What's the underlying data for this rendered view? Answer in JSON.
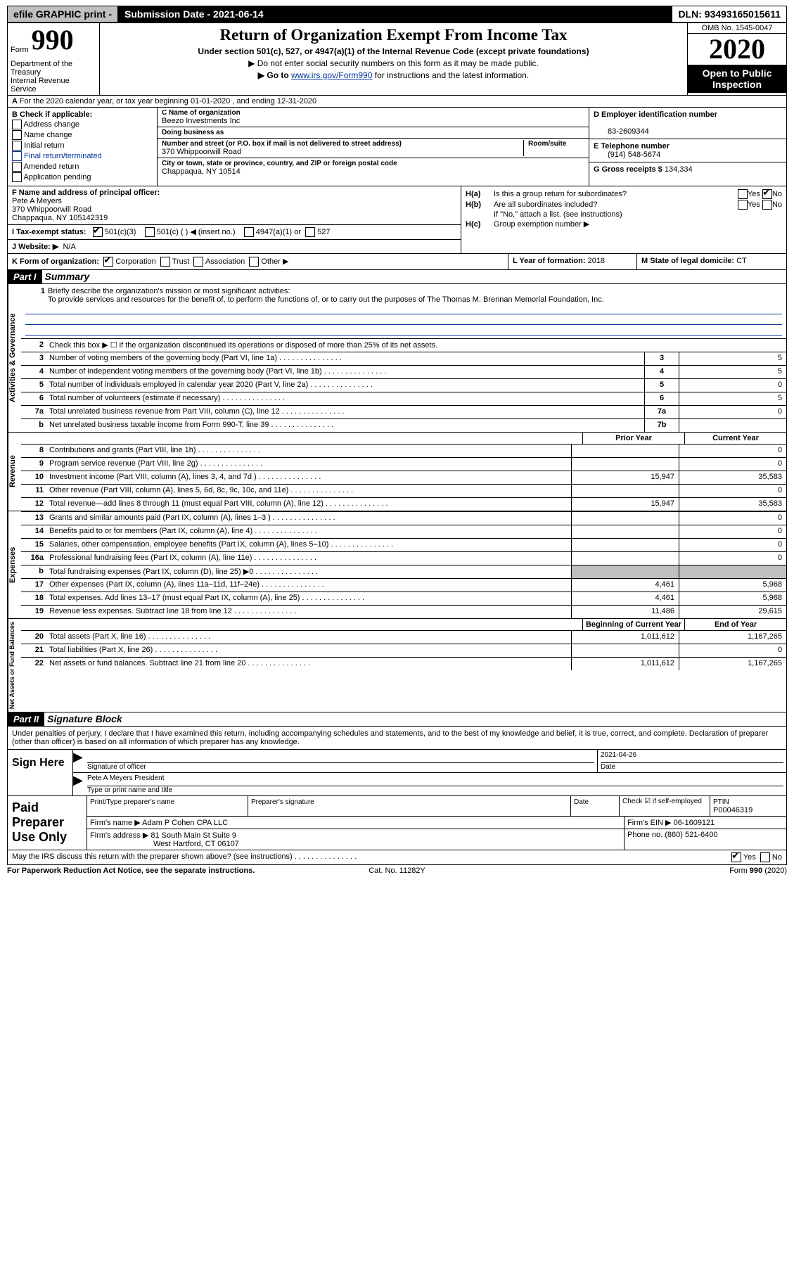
{
  "topbar": {
    "efile": "efile GRAPHIC print - ",
    "submission": "Submission Date - 2021-06-14",
    "dln": "DLN: 93493165015611"
  },
  "header": {
    "form_word": "Form",
    "form_num": "990",
    "title": "Return of Organization Exempt From Income Tax",
    "sub1": "Under section 501(c), 527, or 4947(a)(1) of the Internal Revenue Code (except private foundations)",
    "sub2": "▶ Do not enter social security numbers on this form as it may be made public.",
    "sub3_pre": "▶ Go to ",
    "sub3_link": "www.irs.gov/Form990",
    "sub3_post": " for instructions and the latest information.",
    "dept": "Department of the Treasury\nInternal Revenue Service",
    "omb": "OMB No. 1545-0047",
    "year": "2020",
    "opi": "Open to Public Inspection"
  },
  "line_a": "For the 2020 calendar year, or tax year beginning 01-01-2020 , and ending 12-31-2020",
  "box_b": {
    "label": "B Check if applicable:",
    "items": [
      "Address change",
      "Name change",
      "Initial return",
      "Final return/terminated",
      "Amended return",
      "Application pending"
    ]
  },
  "box_c": {
    "name_lbl": "C Name of organization",
    "name": "Beezo Investments Inc",
    "dba_lbl": "Doing business as",
    "dba": "",
    "addr_lbl": "Number and street (or P.O. box if mail is not delivered to street address)",
    "room_lbl": "Room/suite",
    "addr": "370 Whippoorwill Road",
    "city_lbl": "City or town, state or province, country, and ZIP or foreign postal code",
    "city": "Chappaqua, NY  10514"
  },
  "box_d": {
    "lbl": "D Employer identification number",
    "val": "83-2609344"
  },
  "box_e": {
    "lbl": "E Telephone number",
    "val": "(914) 548-5674"
  },
  "box_g": {
    "lbl": "G Gross receipts $",
    "val": "134,334"
  },
  "box_f": {
    "lbl": "F Name and address of principal officer:",
    "name": "Pete A Meyers",
    "addr": "370 Whippoorwill Road",
    "city": "Chappaqua, NY  105142319"
  },
  "box_h": {
    "a_lbl": "Is this a group return for subordinates?",
    "b_lbl": "Are all subordinates included?",
    "b_note": "If \"No,\" attach a list. (see instructions)",
    "c_lbl": "Group exemption number ▶",
    "yes": "Yes",
    "no": "No"
  },
  "box_i": {
    "lbl": "I   Tax-exempt status:",
    "o1": "501(c)(3)",
    "o2": "501(c) ( ) ◀ (insert no.)",
    "o3": "4947(a)(1) or",
    "o4": "527"
  },
  "box_j": {
    "lbl": "J   Website: ▶",
    "val": "N/A"
  },
  "box_k": {
    "lbl": "K Form of organization:",
    "o1": "Corporation",
    "o2": "Trust",
    "o3": "Association",
    "o4": "Other ▶"
  },
  "box_l": {
    "lbl": "L Year of formation:",
    "val": "2018"
  },
  "box_m": {
    "lbl": "M State of legal domicile:",
    "val": "CT"
  },
  "part1": {
    "num": "Part I",
    "title": "Summary"
  },
  "mission": {
    "q": "Briefly describe the organization's mission or most significant activities:",
    "text": "To provide services and resources for the benefit of, to perform the functions of, or to carry out the purposes of The Thomas M. Brennan Memorial Foundation, Inc."
  },
  "line2": "Check this box ▶ ☐  if the organization discontinued its operations or disposed of more than 25% of its net assets.",
  "govlines": [
    {
      "n": "3",
      "d": "Number of voting members of the governing body (Part VI, line 1a)",
      "cn": "3",
      "v": "5"
    },
    {
      "n": "4",
      "d": "Number of independent voting members of the governing body (Part VI, line 1b)",
      "cn": "4",
      "v": "5"
    },
    {
      "n": "5",
      "d": "Total number of individuals employed in calendar year 2020 (Part V, line 2a)",
      "cn": "5",
      "v": "0"
    },
    {
      "n": "6",
      "d": "Total number of volunteers (estimate if necessary)",
      "cn": "6",
      "v": "5"
    },
    {
      "n": "7a",
      "d": "Total unrelated business revenue from Part VIII, column (C), line 12",
      "cn": "7a",
      "v": "0"
    },
    {
      "n": "b",
      "d": "Net unrelated business taxable income from Form 990-T, line 39",
      "cn": "7b",
      "v": ""
    }
  ],
  "col_hdrs": {
    "prior": "Prior Year",
    "current": "Current Year"
  },
  "revenue": [
    {
      "n": "8",
      "d": "Contributions and grants (Part VIII, line 1h)",
      "p": "",
      "c": "0"
    },
    {
      "n": "9",
      "d": "Program service revenue (Part VIII, line 2g)",
      "p": "",
      "c": "0"
    },
    {
      "n": "10",
      "d": "Investment income (Part VIII, column (A), lines 3, 4, and 7d )",
      "p": "15,947",
      "c": "35,583"
    },
    {
      "n": "11",
      "d": "Other revenue (Part VIII, column (A), lines 5, 6d, 8c, 9c, 10c, and 11e)",
      "p": "",
      "c": "0"
    },
    {
      "n": "12",
      "d": "Total revenue—add lines 8 through 11 (must equal Part VIII, column (A), line 12)",
      "p": "15,947",
      "c": "35,583"
    }
  ],
  "expenses": [
    {
      "n": "13",
      "d": "Grants and similar amounts paid (Part IX, column (A), lines 1–3 )",
      "p": "",
      "c": "0"
    },
    {
      "n": "14",
      "d": "Benefits paid to or for members (Part IX, column (A), line 4)",
      "p": "",
      "c": "0"
    },
    {
      "n": "15",
      "d": "Salaries, other compensation, employee benefits (Part IX, column (A), lines 5–10)",
      "p": "",
      "c": "0"
    },
    {
      "n": "16a",
      "d": "Professional fundraising fees (Part IX, column (A), line 11e)",
      "p": "",
      "c": "0"
    },
    {
      "n": "b",
      "d": "Total fundraising expenses (Part IX, column (D), line 25) ▶0",
      "p": "grey",
      "c": "grey"
    },
    {
      "n": "17",
      "d": "Other expenses (Part IX, column (A), lines 11a–11d, 11f–24e)",
      "p": "4,461",
      "c": "5,968"
    },
    {
      "n": "18",
      "d": "Total expenses. Add lines 13–17 (must equal Part IX, column (A), line 25)",
      "p": "4,461",
      "c": "5,968"
    },
    {
      "n": "19",
      "d": "Revenue less expenses. Subtract line 18 from line 12",
      "p": "11,486",
      "c": "29,615"
    }
  ],
  "na_hdrs": {
    "beg": "Beginning of Current Year",
    "end": "End of Year"
  },
  "netassets": [
    {
      "n": "20",
      "d": "Total assets (Part X, line 16)",
      "p": "1,011,612",
      "c": "1,167,265"
    },
    {
      "n": "21",
      "d": "Total liabilities (Part X, line 26)",
      "p": "",
      "c": "0"
    },
    {
      "n": "22",
      "d": "Net assets or fund balances. Subtract line 21 from line 20",
      "p": "1,011,612",
      "c": "1,167,265"
    }
  ],
  "part2": {
    "num": "Part II",
    "title": "Signature Block"
  },
  "penalties": "Under penalties of perjury, I declare that I have examined this return, including accompanying schedules and statements, and to the best of my knowledge and belief, it is true, correct, and complete. Declaration of preparer (other than officer) is based on all information of which preparer has any knowledge.",
  "sign": {
    "here": "Sign Here",
    "sig_lbl": "Signature of officer",
    "date_lbl": "Date",
    "date": "2021-04-26",
    "name": "Pete A Meyers  President",
    "name_lbl": "Type or print name and title"
  },
  "prep": {
    "lbl": "Paid Preparer Use Only",
    "h1": "Print/Type preparer's name",
    "h2": "Preparer's signature",
    "h3": "Date",
    "h4": "Check ☑ if self-employed",
    "h5": "PTIN",
    "ptin": "P00046319",
    "firm_lbl": "Firm's name    ▶",
    "firm": "Adam P Cohen CPA LLC",
    "ein_lbl": "Firm's EIN ▶",
    "ein": "06-1609121",
    "addr_lbl": "Firm's address ▶",
    "addr": "81 South Main St Suite 9",
    "city": "West Hartford, CT  06107",
    "phone_lbl": "Phone no.",
    "phone": "(860) 521-6400"
  },
  "irsq": "May the IRS discuss this return with the preparer shown above? (see instructions)",
  "footer": {
    "l": "For Paperwork Reduction Act Notice, see the separate instructions.",
    "c": "Cat. No. 11282Y",
    "r": "Form 990 (2020)"
  },
  "section_labels": {
    "gov": "Activities & Governance",
    "rev": "Revenue",
    "exp": "Expenses",
    "na": "Net Assets or Fund Balances"
  }
}
